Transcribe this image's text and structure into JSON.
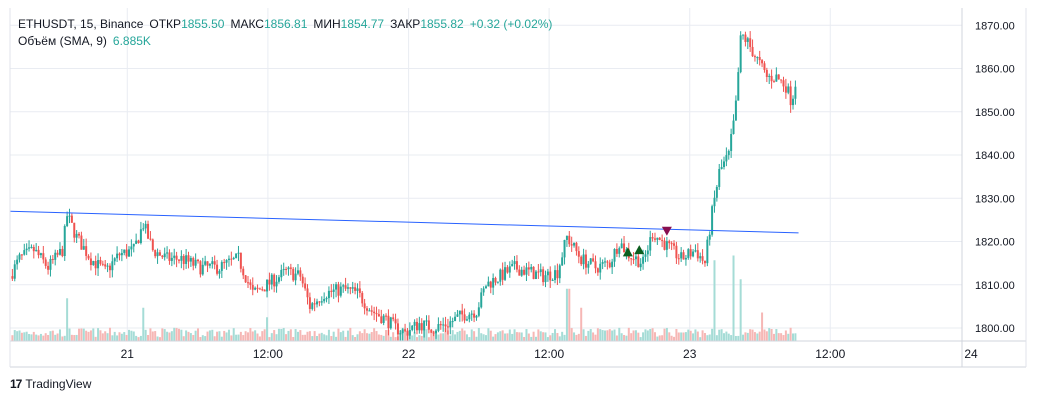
{
  "header": {
    "symbol": "ETHUSDT, 15, Binance",
    "open_label": "ОТКР",
    "open_value": "1855.50",
    "high_label": "МАКС",
    "high_value": "1856.81",
    "low_label": "МИН",
    "low_value": "1854.77",
    "close_label": "ЗАКР",
    "close_value": "1855.82",
    "change": "+0.32 (+0.02%)",
    "volume_label": "Объём (SMA, 9)",
    "volume_value": "6.885K"
  },
  "branding": {
    "logo_text": "17",
    "name": "TradingView"
  },
  "colors": {
    "up": "#26a69a",
    "down": "#ef5350",
    "trendline": "#2962ff",
    "grid": "#e9ecf2",
    "buy_marker": "#0b5d1e",
    "sell_marker": "#880e4f"
  },
  "chart_data": {
    "type": "candlestick",
    "ylim": [
      1797,
      1874
    ],
    "yticks": [
      1800,
      1810,
      1820,
      1830,
      1840,
      1850,
      1860,
      1870
    ],
    "ytick_labels": [
      "1800.00",
      "1810.00",
      "1820.00",
      "1830.00",
      "1840.00",
      "1850.00",
      "1860.00",
      "1870.00"
    ],
    "xticks": [
      {
        "label": "21",
        "pos": 0.1232
      },
      {
        "label": "12:00",
        "pos": 0.2709
      },
      {
        "label": "22",
        "pos": 0.4187
      },
      {
        "label": "12:00",
        "pos": 0.5663
      },
      {
        "label": "23",
        "pos": 0.714
      },
      {
        "label": "12:00",
        "pos": 0.8616
      },
      {
        "label": "24",
        "pos": 1.0095
      }
    ],
    "trendline": [
      {
        "t": 0.0,
        "price": 1827.0
      },
      {
        "t": 0.8283,
        "price": 1822.0
      }
    ],
    "last_candle_t": 0.8272,
    "price_path": [
      [
        0.0,
        1812
      ],
      [
        0.01,
        1816
      ],
      [
        0.025,
        1818
      ],
      [
        0.04,
        1814
      ],
      [
        0.055,
        1818
      ],
      [
        0.06,
        1826
      ],
      [
        0.07,
        1821
      ],
      [
        0.085,
        1816
      ],
      [
        0.1,
        1813
      ],
      [
        0.115,
        1817
      ],
      [
        0.13,
        1818
      ],
      [
        0.14,
        1824
      ],
      [
        0.15,
        1818
      ],
      [
        0.165,
        1816
      ],
      [
        0.18,
        1816
      ],
      [
        0.2,
        1814
      ],
      [
        0.22,
        1814
      ],
      [
        0.24,
        1816
      ],
      [
        0.255,
        1808
      ],
      [
        0.27,
        1810
      ],
      [
        0.29,
        1813
      ],
      [
        0.305,
        1812
      ],
      [
        0.315,
        1805
      ],
      [
        0.33,
        1808
      ],
      [
        0.35,
        1809
      ],
      [
        0.365,
        1808
      ],
      [
        0.38,
        1804
      ],
      [
        0.395,
        1802
      ],
      [
        0.405,
        1800
      ],
      [
        0.415,
        1799
      ],
      [
        0.43,
        1801
      ],
      [
        0.445,
        1800
      ],
      [
        0.46,
        1801
      ],
      [
        0.475,
        1803
      ],
      [
        0.49,
        1804
      ],
      [
        0.5,
        1810
      ],
      [
        0.515,
        1812
      ],
      [
        0.53,
        1814
      ],
      [
        0.545,
        1813
      ],
      [
        0.56,
        1812
      ],
      [
        0.575,
        1813
      ],
      [
        0.585,
        1821
      ],
      [
        0.6,
        1816
      ],
      [
        0.615,
        1814
      ],
      [
        0.63,
        1815
      ],
      [
        0.64,
        1820
      ],
      [
        0.65,
        1817
      ],
      [
        0.665,
        1815
      ],
      [
        0.675,
        1822
      ],
      [
        0.69,
        1819
      ],
      [
        0.705,
        1816
      ],
      [
        0.72,
        1818
      ],
      [
        0.73,
        1815
      ],
      [
        0.737,
        1826
      ],
      [
        0.745,
        1836
      ],
      [
        0.755,
        1840
      ],
      [
        0.762,
        1850
      ],
      [
        0.768,
        1868
      ],
      [
        0.775,
        1866
      ],
      [
        0.785,
        1862
      ],
      [
        0.795,
        1858
      ],
      [
        0.805,
        1858
      ],
      [
        0.815,
        1856
      ],
      [
        0.82,
        1853
      ],
      [
        0.827,
        1855.8
      ]
    ],
    "volume_spikes": [
      {
        "t": 0.06,
        "v": 0.45
      },
      {
        "t": 0.14,
        "v": 0.35
      },
      {
        "t": 0.27,
        "v": 0.25
      },
      {
        "t": 0.586,
        "v": 0.55
      },
      {
        "t": 0.6,
        "v": 0.35
      },
      {
        "t": 0.74,
        "v": 0.85
      },
      {
        "t": 0.76,
        "v": 0.9
      },
      {
        "t": 0.768,
        "v": 0.65
      },
      {
        "t": 0.79,
        "v": 0.3
      }
    ],
    "markers": [
      {
        "type": "buy",
        "t": 0.649,
        "price": 1817.5
      },
      {
        "type": "buy",
        "t": 0.661,
        "price": 1818.0
      },
      {
        "type": "sell",
        "t": 0.69,
        "price": 1822.5
      }
    ]
  }
}
